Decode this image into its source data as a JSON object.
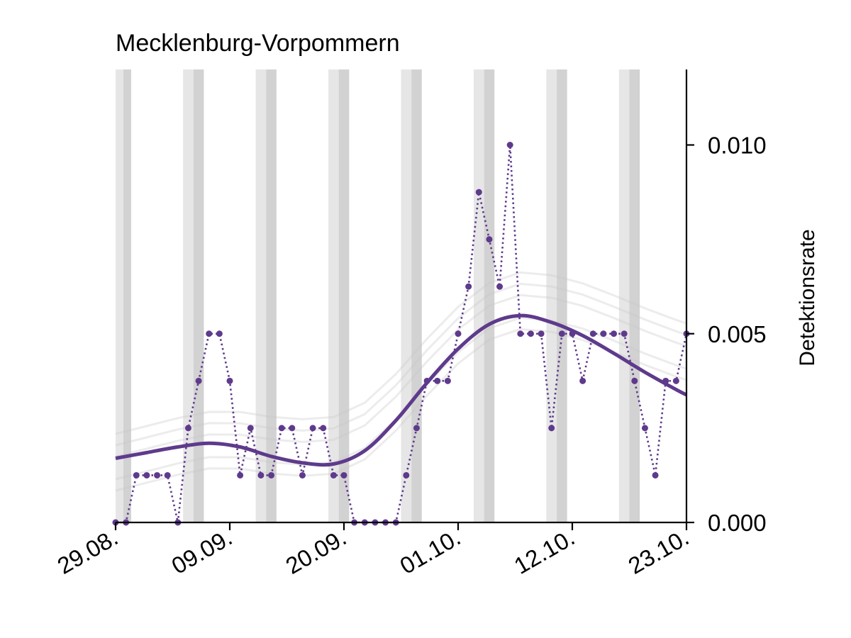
{
  "chart_data": {
    "type": "line",
    "title": "Mecklenburg-Vorpommern",
    "xlabel": "",
    "ylabel": "Detektionsrate",
    "x_tick_labels": [
      "29.08.",
      "09.09.",
      "20.09.",
      "01.10.",
      "12.10.",
      "23.10."
    ],
    "x_ticks_day_index": [
      0,
      11,
      22,
      33,
      44,
      55
    ],
    "y_ticks": [
      0.0,
      0.005,
      0.01
    ],
    "y_tick_labels": [
      "0.000",
      "0.005",
      "0.010"
    ],
    "ylim": [
      0,
      0.012
    ],
    "xlim_day_index": [
      0,
      55
    ],
    "y_axis_side": "right",
    "grid": false,
    "weekend_shading": [
      {
        "start_day_index": 0,
        "end_day_index": 1.5
      },
      {
        "start_day_index": 6.5,
        "end_day_index": 8.5
      },
      {
        "start_day_index": 13.5,
        "end_day_index": 15.5
      },
      {
        "start_day_index": 20.5,
        "end_day_index": 22.5
      },
      {
        "start_day_index": 27.5,
        "end_day_index": 29.5
      },
      {
        "start_day_index": 34.5,
        "end_day_index": 36.5
      },
      {
        "start_day_index": 41.5,
        "end_day_index": 43.5
      },
      {
        "start_day_index": 48.5,
        "end_day_index": 50.5
      }
    ],
    "series": [
      {
        "color": "#5e3a8c",
        "style": "dotted-markers",
        "day_index": [
          0,
          1,
          2,
          3,
          4,
          5,
          6,
          7,
          8,
          9,
          10,
          11,
          12,
          13,
          14,
          15,
          16,
          17,
          18,
          19,
          20,
          21,
          22,
          23,
          24,
          25,
          26,
          27,
          28,
          29,
          30,
          31,
          32,
          33,
          34,
          35,
          36,
          37,
          38,
          39,
          40,
          41,
          42,
          43,
          44,
          45,
          46,
          47,
          48,
          49,
          50,
          51,
          52,
          53,
          54,
          55
        ],
        "values": [
          0.0,
          0.0,
          0.00125,
          0.00125,
          0.00125,
          0.00125,
          0.0,
          0.0025,
          0.00375,
          0.005,
          0.005,
          0.00375,
          0.00125,
          0.0025,
          0.00125,
          0.00125,
          0.0025,
          0.0025,
          0.00125,
          0.0025,
          0.0025,
          0.00125,
          0.00125,
          0.0,
          0.0,
          0.0,
          0.0,
          0.0,
          0.00125,
          0.0025,
          0.00375,
          0.00375,
          0.00375,
          0.005,
          0.00625,
          0.00875,
          0.0075,
          0.00625,
          0.01,
          0.005,
          0.005,
          0.005,
          0.0025,
          0.005,
          0.005,
          0.00375,
          0.005,
          0.005,
          0.005,
          0.005,
          0.00375,
          0.0025,
          0.00125,
          0.00375,
          0.00375,
          0.005
        ]
      },
      {
        "color": "#5e3a8c",
        "style": "smooth-trend",
        "day_index": [
          0,
          3,
          6,
          9,
          12,
          15,
          18,
          21,
          24,
          27,
          30,
          33,
          36,
          39,
          42,
          45,
          48,
          51,
          54,
          55
        ],
        "values": [
          0.0017,
          0.00185,
          0.002,
          0.0021,
          0.002,
          0.00175,
          0.00158,
          0.00155,
          0.0019,
          0.0027,
          0.0037,
          0.0046,
          0.00525,
          0.00548,
          0.0053,
          0.00495,
          0.00448,
          0.00398,
          0.00352,
          0.00338
        ]
      }
    ],
    "background_series_color": "#c8c8c8"
  }
}
